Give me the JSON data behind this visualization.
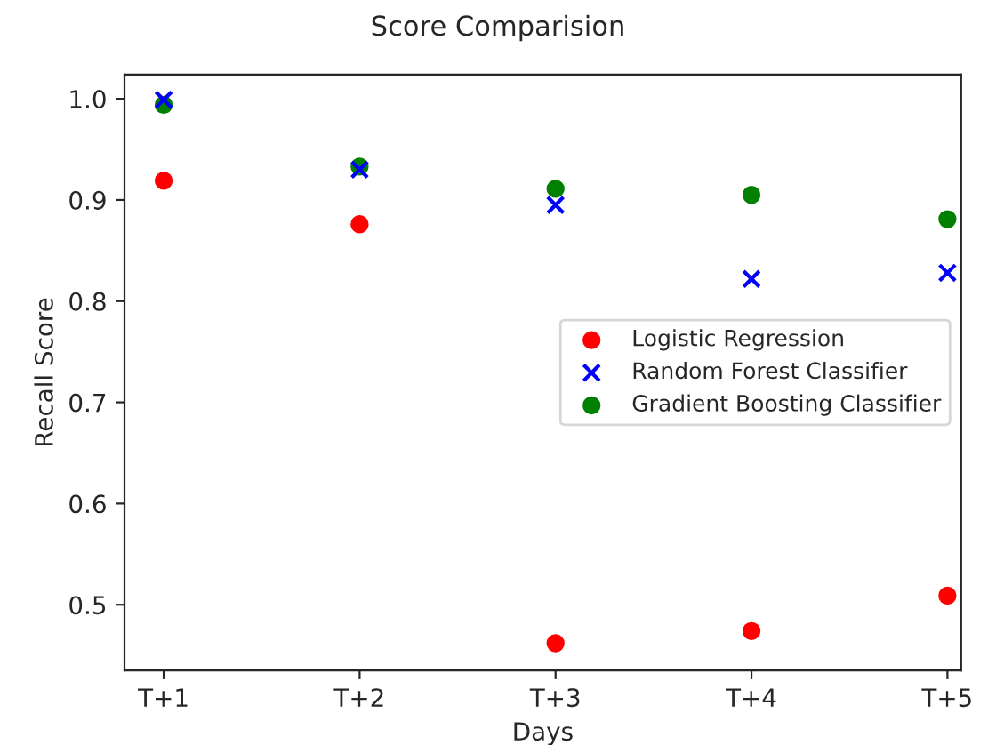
{
  "chart_data": {
    "type": "scatter",
    "title": "Score Comparision",
    "xlabel": "Days",
    "ylabel": "Recall Score",
    "categories": [
      "T+1",
      "T+2",
      "T+3",
      "T+4",
      "T+5"
    ],
    "series": [
      {
        "name": "Logistic Regression",
        "color": "#ff0000",
        "marker": "circle",
        "values": [
          0.919,
          0.876,
          0.462,
          0.474,
          0.509
        ]
      },
      {
        "name": "Random Forest Classifier",
        "color": "#0000ff",
        "marker": "cross",
        "values": [
          0.999,
          0.93,
          0.895,
          0.822,
          0.828
        ]
      },
      {
        "name": "Gradient Boosting Classifier",
        "color": "#008000",
        "marker": "circle",
        "values": [
          0.994,
          0.933,
          0.911,
          0.905,
          0.881
        ]
      }
    ],
    "ylim": [
      0.435,
      1.024
    ],
    "yticks": [
      {
        "value": 0.5,
        "label": "0.5"
      },
      {
        "value": 0.6,
        "label": "0.6"
      },
      {
        "value": 0.7,
        "label": "0.7"
      },
      {
        "value": 0.8,
        "label": "0.8"
      },
      {
        "value": 0.9,
        "label": "0.9"
      },
      {
        "value": 1.0,
        "label": "1.0"
      }
    ],
    "grid": false,
    "legend": "center right"
  }
}
